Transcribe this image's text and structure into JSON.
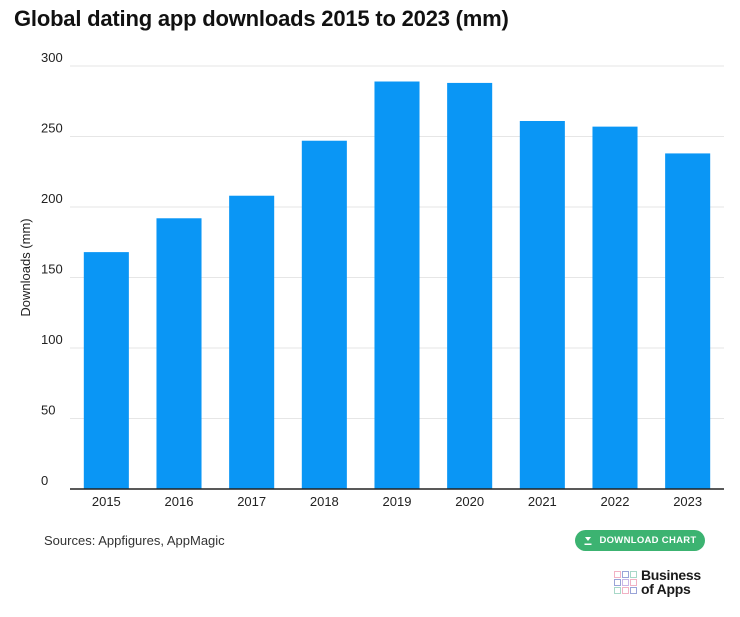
{
  "title": "Global dating app downloads 2015 to 2023 (mm)",
  "sources": "Sources: Appfigures, AppMagic",
  "download_button": {
    "label": "DOWNLOAD CHART",
    "icon": "download-icon"
  },
  "logo": {
    "line1": "Business",
    "line2": "of Apps"
  },
  "colors": {
    "bar": "#0a96f5",
    "gridline": "#e6e6e6",
    "axis": "#222222",
    "button": "#3cb371"
  },
  "chart_data": {
    "type": "bar",
    "title": "Global dating app downloads 2015 to 2023 (mm)",
    "xlabel": "",
    "ylabel": "Downloads (mm)",
    "categories": [
      "2015",
      "2016",
      "2017",
      "2018",
      "2019",
      "2020",
      "2021",
      "2022",
      "2023"
    ],
    "values": [
      168,
      192,
      208,
      247,
      289,
      288,
      261,
      257,
      238
    ],
    "ylim": [
      0,
      300
    ],
    "yticks": [
      0,
      50,
      100,
      150,
      200,
      250,
      300
    ],
    "grid": true,
    "legend": "none"
  }
}
